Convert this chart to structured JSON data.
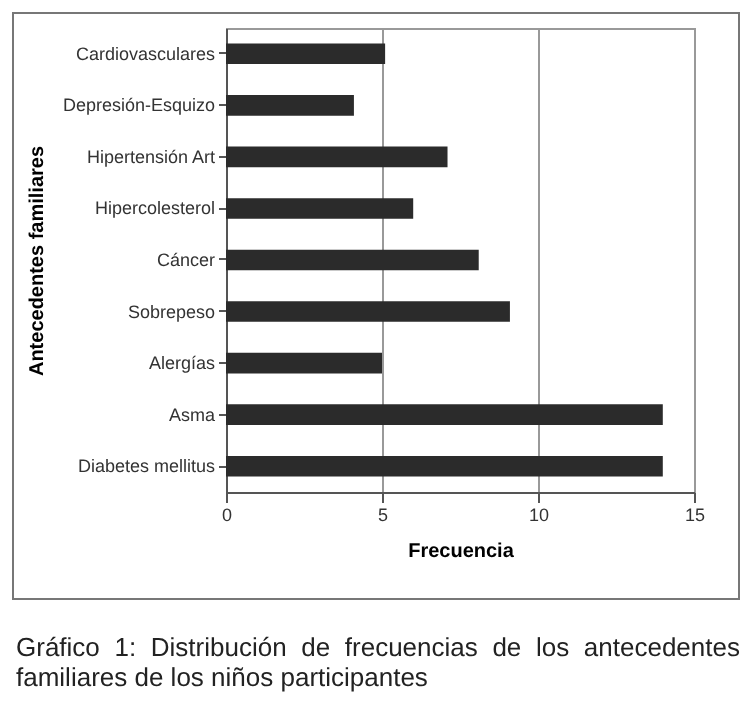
{
  "chart_data": {
    "type": "bar",
    "orientation": "horizontal",
    "xlabel": "Frecuencia",
    "ylabel": "Antecedentes familiares",
    "categories": [
      "Cardiovasculares",
      "Depresión-Esquizo",
      "Hipertensión Art",
      "Hipercolesterol",
      "Cáncer",
      "Sobrepeso",
      "Alergías",
      "Asma",
      "Diabetes mellitus"
    ],
    "values": [
      5.1,
      4.1,
      7.1,
      6,
      8.1,
      9.1,
      5,
      14,
      14
    ],
    "color": "#2b2b2b",
    "xlim": [
      0,
      15
    ],
    "xticks": [
      0,
      5,
      10,
      15
    ],
    "grid": "x",
    "annotations": [
      "Gráfico 1: Distribución de frecuencias de los antecedentes familiares de los niños participantes"
    ]
  }
}
